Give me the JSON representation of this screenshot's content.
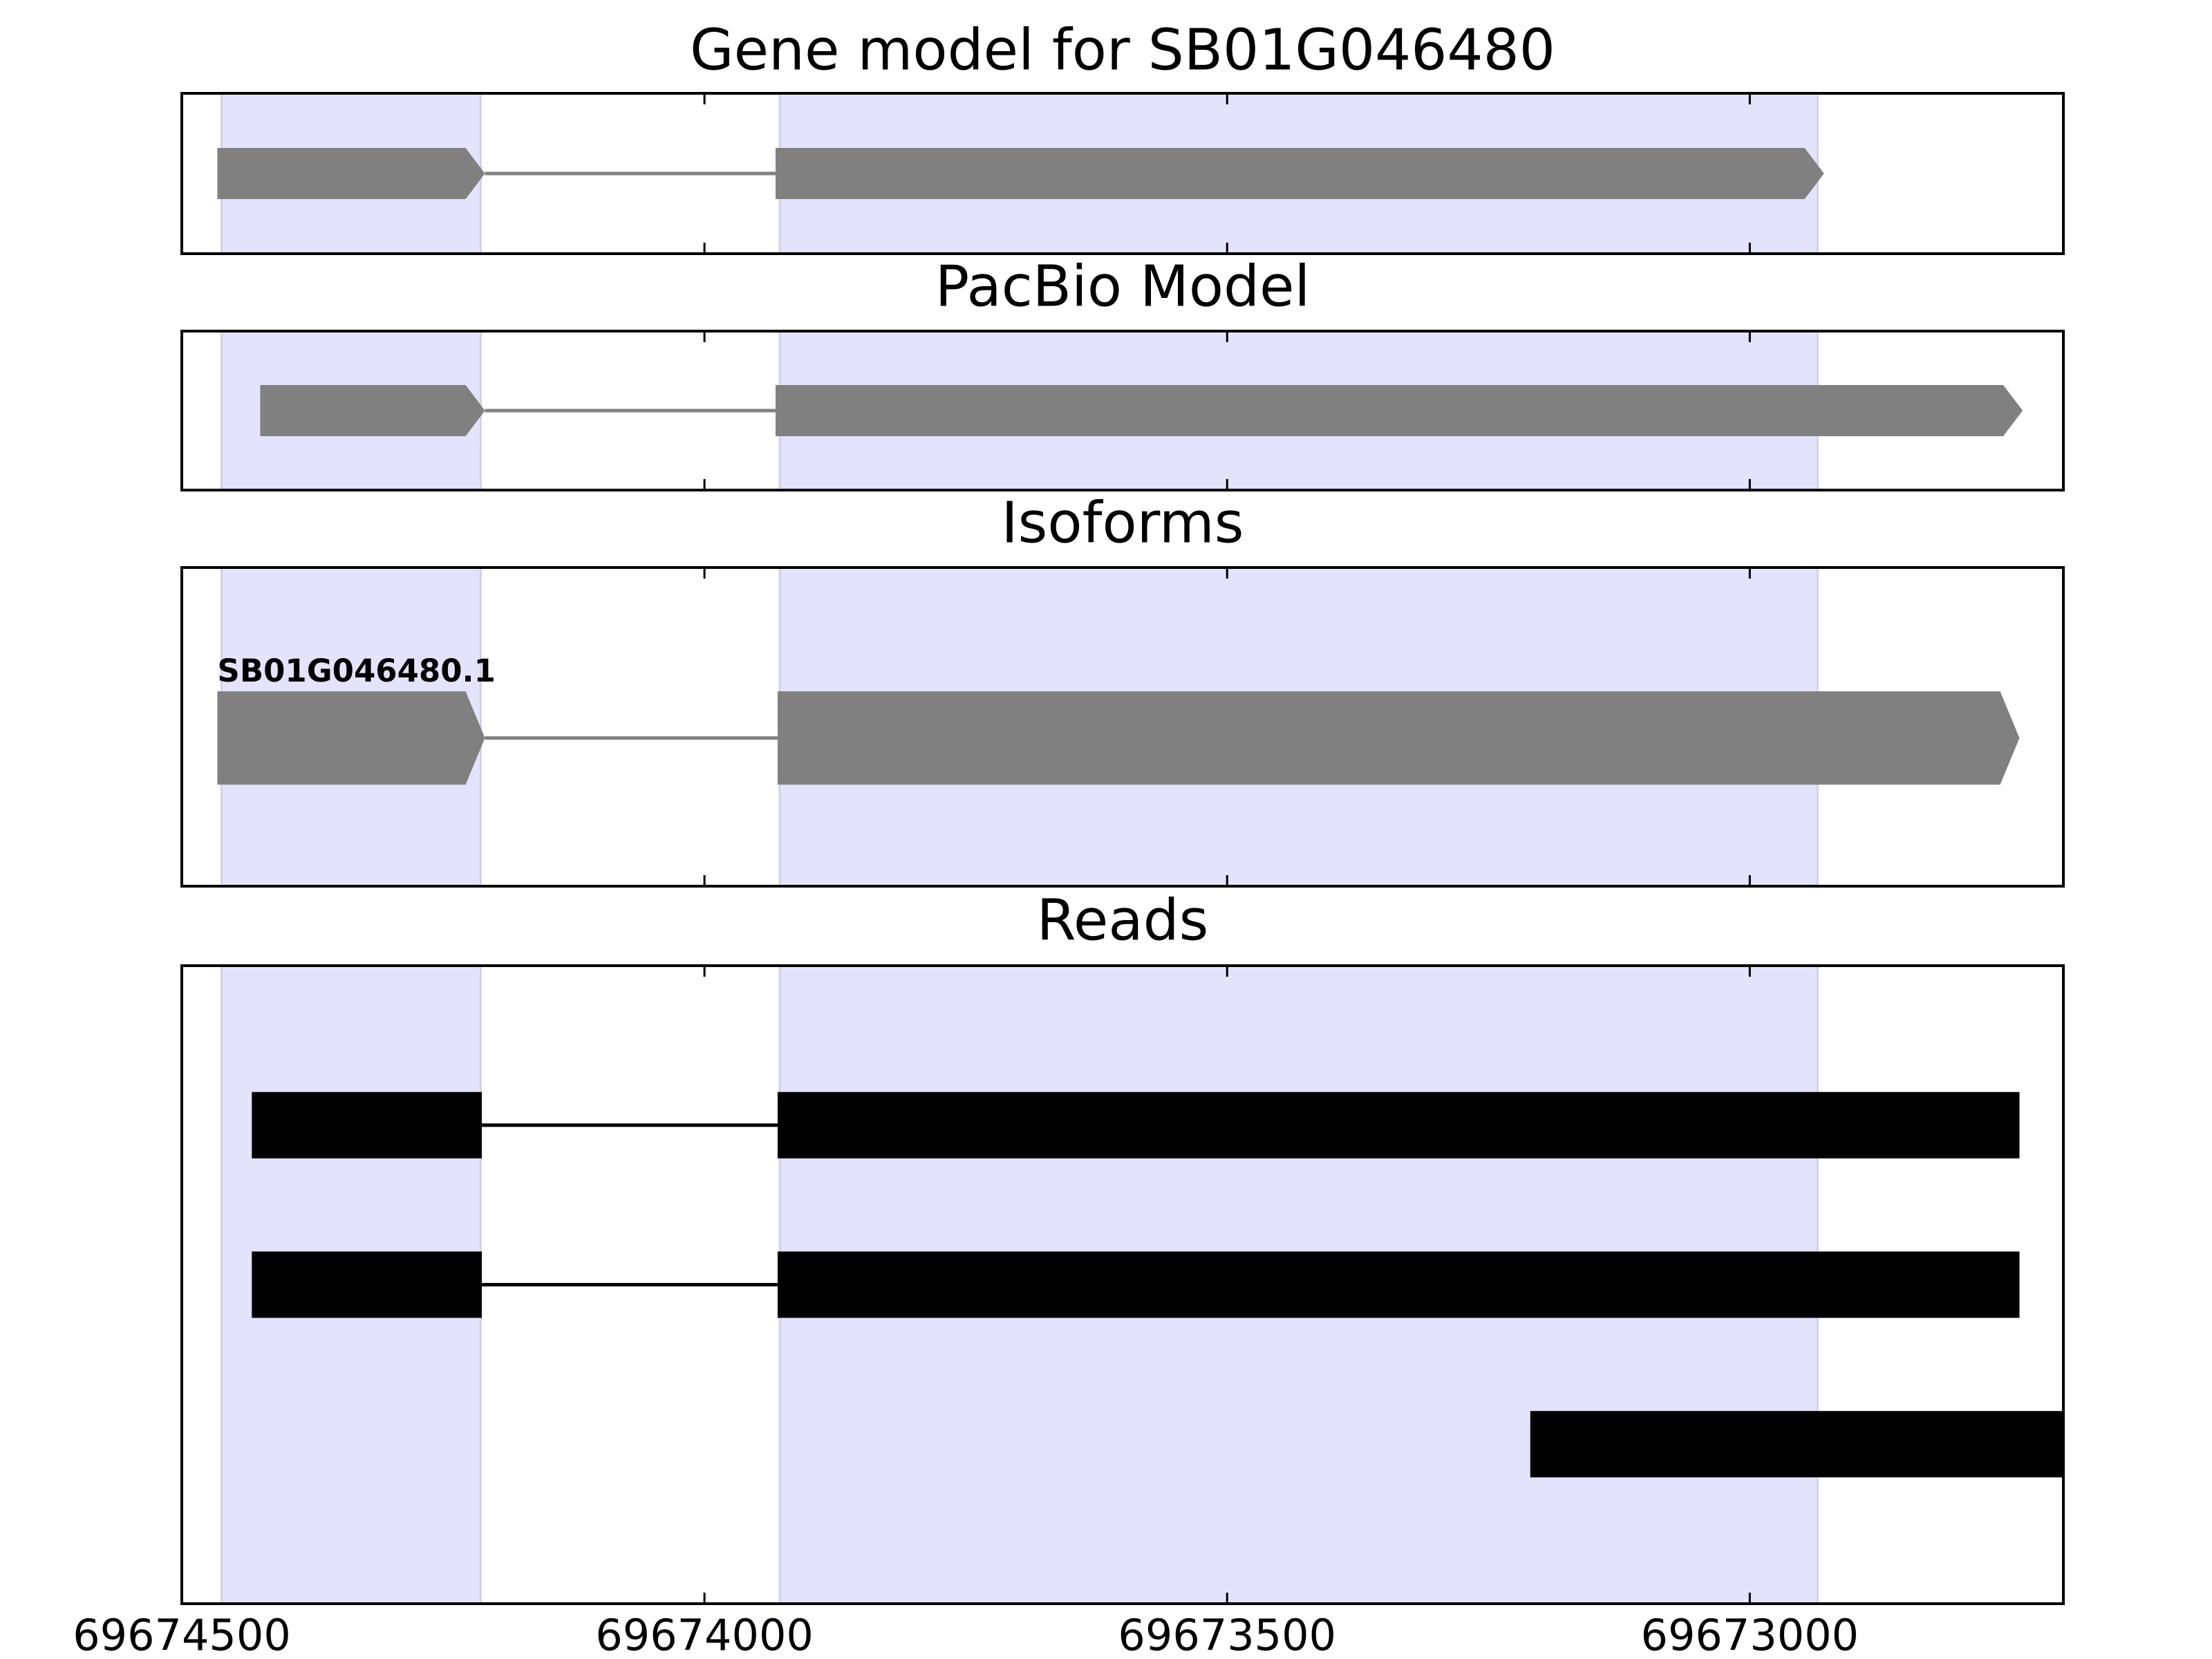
{
  "chart_data": {
    "type": "gene-track",
    "xlim": [
      69674500,
      69672700
    ],
    "xticks": [
      69674500,
      69674000,
      69673500,
      69673000
    ],
    "highlight_color": "#e3e3fc",
    "highlight_regions": [
      [
        69674462,
        69674214
      ],
      [
        69673928,
        69672935
      ]
    ],
    "panels": [
      {
        "title": "Gene model for SB01G046480",
        "style": "arrow",
        "color": "#808080",
        "features": [
          {
            "exons": [
              [
                69674466,
                69674210
              ],
              [
                69673932,
                69672929
              ]
            ]
          }
        ]
      },
      {
        "title": "PacBio Model",
        "style": "arrow",
        "color": "#808080",
        "features": [
          {
            "exons": [
              [
                69674425,
                69674210
              ],
              [
                69673932,
                69672739
              ]
            ]
          }
        ]
      },
      {
        "title": "Isoforms",
        "style": "arrow",
        "color": "#808080",
        "features": [
          {
            "name": "SB01G046480.1",
            "exons": [
              [
                69674466,
                69674210
              ],
              [
                69673930,
                69672742
              ]
            ]
          }
        ]
      },
      {
        "title": "Reads",
        "style": "block",
        "color": "#000000",
        "features": [
          {
            "exons": [
              [
                69674433,
                69674213
              ],
              [
                69673930,
                69672742
              ]
            ]
          },
          {
            "exons": [
              [
                69674433,
                69674213
              ],
              [
                69673930,
                69672742
              ]
            ]
          },
          {
            "exons": [
              [
                69673210,
                69672700
              ]
            ]
          }
        ]
      }
    ]
  }
}
